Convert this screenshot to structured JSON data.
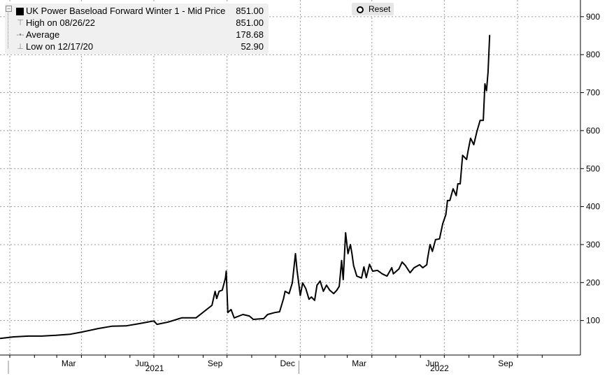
{
  "legend": {
    "title": "UK Power Baseload Forward Winter 1 - Mid Price",
    "last": "851.00",
    "high_label": "High on 08/26/22",
    "high_value": "851.00",
    "avg_label": "Average",
    "avg_value": "178.68",
    "low_label": "Low on 12/17/20",
    "low_value": "52.90"
  },
  "reset_label": "Reset",
  "chart_data": {
    "type": "line",
    "title": "UK Power Baseload Forward Winter 1 - Mid Price",
    "x_units": "days since 2021-01-01",
    "ylim": [
      0,
      900
    ],
    "yticks": [
      100,
      200,
      300,
      400,
      500,
      600,
      700,
      800,
      900
    ],
    "month_labels": [
      {
        "label": "Mar",
        "day": 74
      },
      {
        "label": "Jun",
        "day": 166
      },
      {
        "label": "Sep",
        "day": 258
      },
      {
        "label": "Dec",
        "day": 349
      },
      {
        "label": "Mar",
        "day": 439
      },
      {
        "label": "Jun",
        "day": 531
      },
      {
        "label": "Sep",
        "day": 623
      }
    ],
    "year_labels": [
      {
        "label": "2021",
        "day": 182
      },
      {
        "label": "2022",
        "day": 540
      }
    ],
    "grid": true,
    "color": "#000000",
    "series": [
      {
        "name": "Mid Price",
        "x": [
          -12,
          5,
          23,
          40,
          58,
          76,
          91,
          111,
          128,
          146,
          163,
          181,
          185,
          199,
          216,
          234,
          254,
          258,
          260,
          263,
          267,
          271,
          272,
          274,
          278,
          282,
          293,
          301,
          306,
          319,
          324,
          333,
          339,
          344,
          346,
          351,
          355,
          359,
          361,
          365,
          368,
          372,
          376,
          379,
          383,
          386,
          390,
          394,
          398,
          402,
          407,
          411,
          414,
          417,
          419,
          422,
          425,
          428,
          430,
          432,
          436,
          442,
          445,
          448,
          452,
          456,
          462,
          468,
          474,
          480,
          482,
          489,
          493,
          497,
          503,
          508,
          515,
          519,
          524,
          525,
          528,
          531,
          535,
          540,
          544,
          548,
          550,
          553,
          557,
          561,
          563,
          566,
          569,
          574,
          576,
          579,
          583,
          587,
          591,
          595,
          597,
          599,
          601,
          603
        ],
        "y": [
          53,
          57,
          59,
          59,
          61,
          64,
          70,
          79,
          85,
          86,
          92,
          99,
          90,
          96,
          107,
          107,
          140,
          177,
          158,
          177,
          180,
          212,
          230,
          121,
          129,
          107,
          116,
          112,
          103,
          105,
          116,
          121,
          123,
          158,
          177,
          171,
          199,
          276,
          232,
          166,
          199,
          184,
          156,
          162,
          153,
          193,
          204,
          177,
          193,
          180,
          171,
          180,
          190,
          258,
          208,
          331,
          276,
          300,
          276,
          245,
          217,
          212,
          241,
          213,
          248,
          230,
          232,
          223,
          217,
          239,
          223,
          236,
          254,
          245,
          226,
          239,
          247,
          239,
          247,
          263,
          300,
          282,
          313,
          315,
          355,
          379,
          416,
          416,
          447,
          429,
          460,
          460,
          535,
          524,
          548,
          580,
          563,
          598,
          627,
          627,
          723,
          705,
          754,
          851
        ]
      }
    ]
  }
}
